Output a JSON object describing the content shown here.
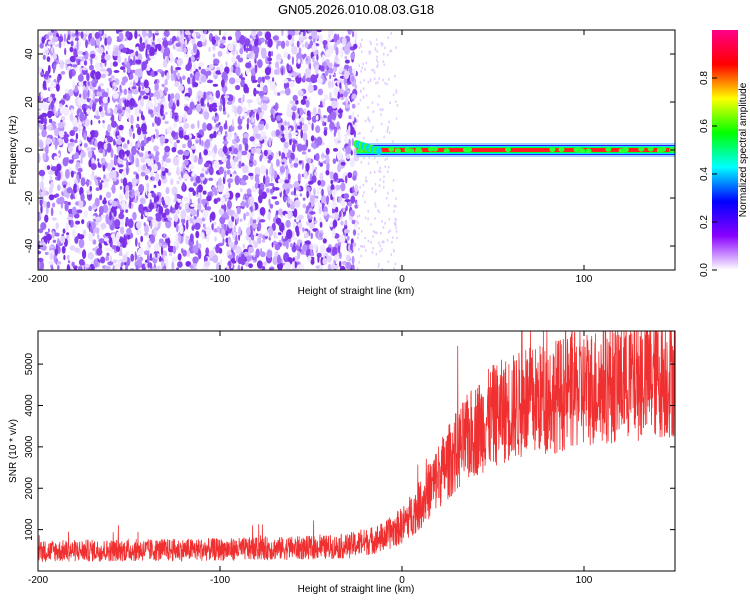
{
  "title": "GN05.2026.010.08.03.G18",
  "chart_data": [
    {
      "type": "heatmap",
      "title": "GN05.2026.010.08.03.G18",
      "xlabel": "Height of straight line (km)",
      "ylabel": "Frequency (Hz)",
      "xlim": [
        -200,
        150
      ],
      "ylim": [
        -50,
        50
      ],
      "xticks": [
        -200,
        -100,
        0,
        100
      ],
      "yticks": [
        -40,
        -20,
        0,
        20,
        40
      ],
      "noise_region_x": [
        -200,
        -25
      ],
      "signal_line": {
        "x_start": -25,
        "x_end": 150,
        "frequency": 0
      },
      "colorbar": {
        "label": "Normalized spectral amplitude",
        "range": [
          0,
          1
        ],
        "ticks": [
          0.0,
          0.2,
          0.4,
          0.6,
          0.8
        ],
        "colors": [
          "#ffffff",
          "#8800ff",
          "#0000ff",
          "#00ffff",
          "#00ff00",
          "#ffff00",
          "#ff0000",
          "#ff0088"
        ]
      }
    },
    {
      "type": "line",
      "xlabel": "Height of straight line (km)",
      "ylabel": "SNR (10 * v/v)",
      "xlim": [
        -200,
        150
      ],
      "ylim": [
        0,
        5800
      ],
      "xticks": [
        -200,
        -100,
        0,
        100
      ],
      "yticks": [
        1000,
        2000,
        3000,
        4000,
        5000
      ],
      "color": "#f03030",
      "series_trend": {
        "x": [
          -200,
          -150,
          -100,
          -50,
          -30,
          -20,
          -10,
          0,
          10,
          20,
          30,
          40,
          50,
          60,
          80,
          100,
          120,
          150
        ],
        "y": [
          480,
          500,
          520,
          560,
          600,
          700,
          820,
          1100,
          1600,
          2300,
          2900,
          3400,
          3750,
          3950,
          4200,
          4400,
          4600,
          4750
        ]
      }
    }
  ]
}
